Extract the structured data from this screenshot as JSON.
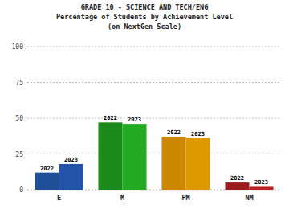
{
  "chart_data": {
    "type": "bar",
    "title": "GRADE 10 - SCIENCE AND TECH/ENG\nPercentage of Students by Achievement Level\n(on NextGen Scale)",
    "categories": [
      "E",
      "M",
      "PM",
      "NM"
    ],
    "series": [
      {
        "name": "2022",
        "values": [
          12,
          47,
          37,
          5
        ],
        "colors": [
          "#1f4f99",
          "#1a8a1a",
          "#cc8800",
          "#9b1c1c"
        ]
      },
      {
        "name": "2023",
        "values": [
          18,
          46,
          36,
          2
        ],
        "colors": [
          "#2255aa",
          "#22aa22",
          "#dd9900",
          "#bb2222"
        ]
      }
    ],
    "ylim": [
      0,
      100
    ],
    "yticks": [
      0,
      25,
      50,
      75,
      100
    ],
    "grid": true
  }
}
